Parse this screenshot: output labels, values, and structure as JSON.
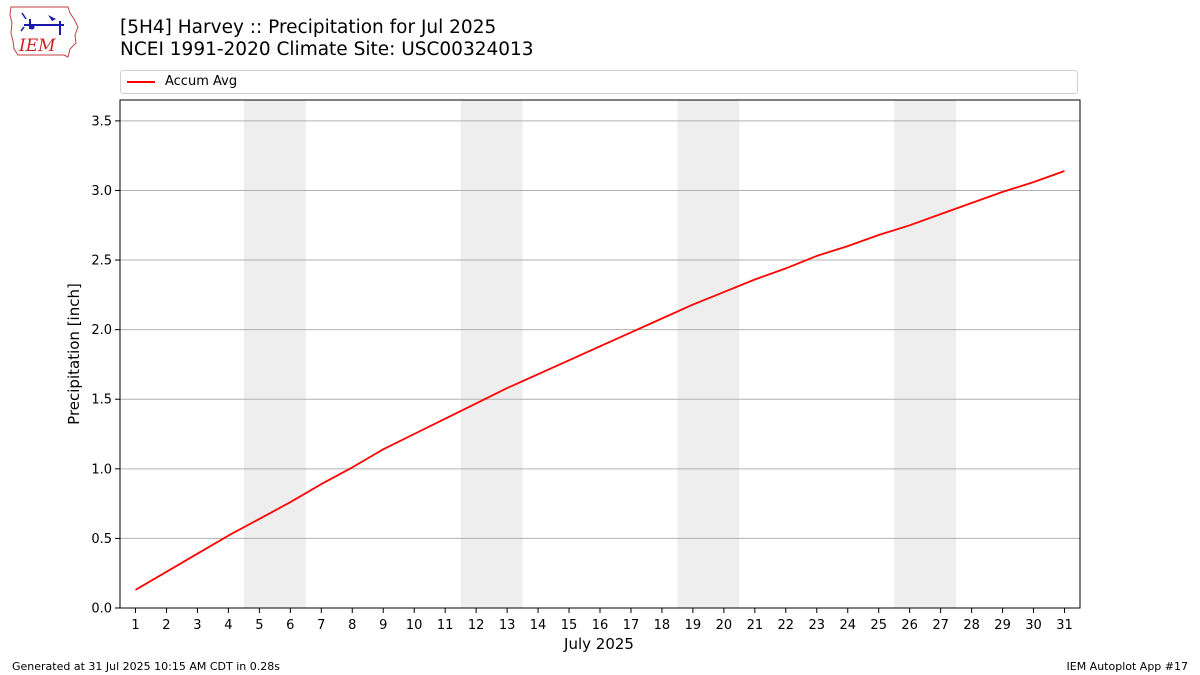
{
  "header": {
    "title_line1": "[5H4] Harvey :: Precipitation for Jul 2025",
    "title_line2": "NCEI 1991-2020 Climate Site: USC00324013",
    "logo_text": "IEM"
  },
  "legend": {
    "items": [
      {
        "label": "Accum Avg",
        "color": "#ff0000"
      }
    ]
  },
  "footer": {
    "left": "Generated at 31 Jul 2025 10:15 AM CDT in 0.28s",
    "right": "IEM Autoplot App #17"
  },
  "chart_data": {
    "type": "line",
    "xlabel": "July 2025",
    "ylabel": "Precipitation [inch]",
    "xlim": [
      0.5,
      31.5
    ],
    "ylim": [
      0,
      3.65
    ],
    "y_ticks": [
      0.0,
      0.5,
      1.0,
      1.5,
      2.0,
      2.5,
      3.0,
      3.5
    ],
    "y_tick_labels": [
      "0.0",
      "0.5",
      "1.0",
      "1.5",
      "2.0",
      "2.5",
      "3.0",
      "3.5"
    ],
    "x": [
      1,
      2,
      3,
      4,
      5,
      6,
      7,
      8,
      9,
      10,
      11,
      12,
      13,
      14,
      15,
      16,
      17,
      18,
      19,
      20,
      21,
      22,
      23,
      24,
      25,
      26,
      27,
      28,
      29,
      30,
      31
    ],
    "x_tick_labels": [
      "1",
      "2",
      "3",
      "4",
      "5",
      "6",
      "7",
      "8",
      "9",
      "10",
      "11",
      "12",
      "13",
      "14",
      "15",
      "16",
      "17",
      "18",
      "19",
      "20",
      "21",
      "22",
      "23",
      "24",
      "25",
      "26",
      "27",
      "28",
      "29",
      "30",
      "31"
    ],
    "grid": "horizontal",
    "legend_position": "top",
    "weekend_shading": [
      [
        5,
        6
      ],
      [
        12,
        13
      ],
      [
        19,
        20
      ],
      [
        26,
        27
      ]
    ],
    "shade_color": "#eeeeee",
    "series": [
      {
        "name": "Accum Avg",
        "color": "#ff0000",
        "values": [
          0.13,
          0.26,
          0.39,
          0.52,
          0.64,
          0.76,
          0.89,
          1.01,
          1.14,
          1.25,
          1.36,
          1.47,
          1.58,
          1.68,
          1.78,
          1.88,
          1.98,
          2.08,
          2.18,
          2.27,
          2.36,
          2.44,
          2.53,
          2.6,
          2.68,
          2.75,
          2.83,
          2.91,
          2.99,
          3.06,
          3.14
        ]
      }
    ]
  }
}
